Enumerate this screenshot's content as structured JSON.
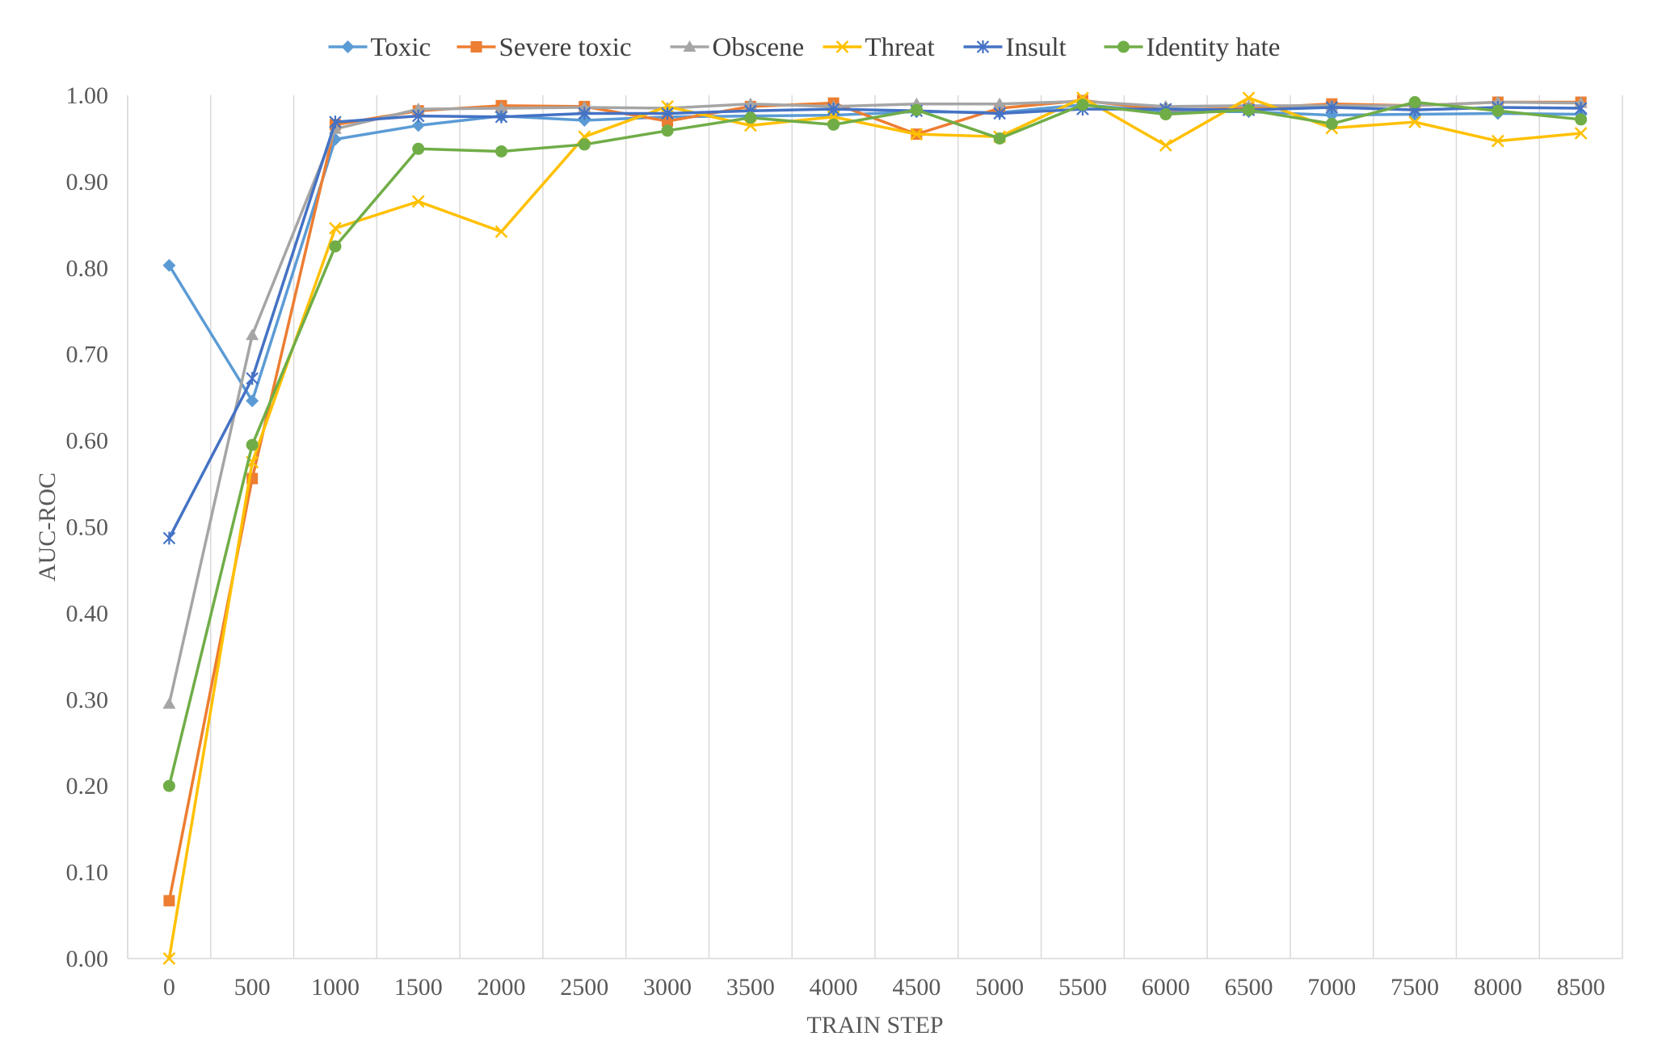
{
  "chart_data": {
    "type": "line",
    "title": "",
    "xlabel": "TRAIN STEP",
    "ylabel": "AUC-ROC",
    "x": [
      0,
      500,
      1000,
      1500,
      2000,
      2500,
      3000,
      3500,
      4000,
      4500,
      5000,
      5500,
      6000,
      6500,
      7000,
      7500,
      8000,
      8500
    ],
    "ylim": [
      0,
      1
    ],
    "yticks": [
      "0.00",
      "0.10",
      "0.20",
      "0.30",
      "0.40",
      "0.50",
      "0.60",
      "0.70",
      "0.80",
      "0.90",
      "1.00"
    ],
    "grid": "vertical",
    "legend_position": "top",
    "series": [
      {
        "name": "Toxic",
        "color": "#5B9BD5",
        "marker": "diamond",
        "values": [
          0.803,
          0.646,
          0.949,
          0.965,
          0.976,
          0.971,
          0.975,
          0.976,
          0.977,
          0.981,
          0.98,
          0.989,
          0.981,
          0.981,
          0.977,
          0.978,
          0.979,
          0.978
        ]
      },
      {
        "name": "Severe toxic",
        "color": "#ED7D31",
        "marker": "square",
        "values": [
          0.067,
          0.556,
          0.966,
          0.982,
          0.988,
          0.987,
          0.97,
          0.987,
          0.991,
          0.955,
          0.985,
          0.994,
          0.983,
          0.985,
          0.99,
          0.988,
          0.992,
          0.992
        ]
      },
      {
        "name": "Obscene",
        "color": "#A5A5A5",
        "marker": "triangle",
        "values": [
          0.295,
          0.722,
          0.961,
          0.984,
          0.985,
          0.986,
          0.985,
          0.99,
          0.987,
          0.99,
          0.99,
          0.993,
          0.987,
          0.988,
          0.988,
          0.988,
          0.992,
          0.991
        ]
      },
      {
        "name": "Threat",
        "color": "#FFC000",
        "marker": "x",
        "values": [
          0.0,
          0.575,
          0.846,
          0.877,
          0.842,
          0.952,
          0.987,
          0.965,
          0.975,
          0.955,
          0.952,
          0.997,
          0.942,
          0.997,
          0.962,
          0.969,
          0.947,
          0.956
        ]
      },
      {
        "name": "Insult",
        "color": "#4472C4",
        "marker": "star",
        "values": [
          0.487,
          0.672,
          0.969,
          0.976,
          0.975,
          0.979,
          0.979,
          0.982,
          0.984,
          0.982,
          0.979,
          0.984,
          0.984,
          0.983,
          0.986,
          0.983,
          0.986,
          0.985
        ]
      },
      {
        "name": "Identity hate",
        "color": "#70AD47",
        "marker": "circle",
        "values": [
          0.2,
          0.595,
          0.825,
          0.938,
          0.935,
          0.943,
          0.959,
          0.974,
          0.966,
          0.983,
          0.95,
          0.989,
          0.978,
          0.983,
          0.967,
          0.992,
          0.982,
          0.972
        ]
      }
    ]
  }
}
